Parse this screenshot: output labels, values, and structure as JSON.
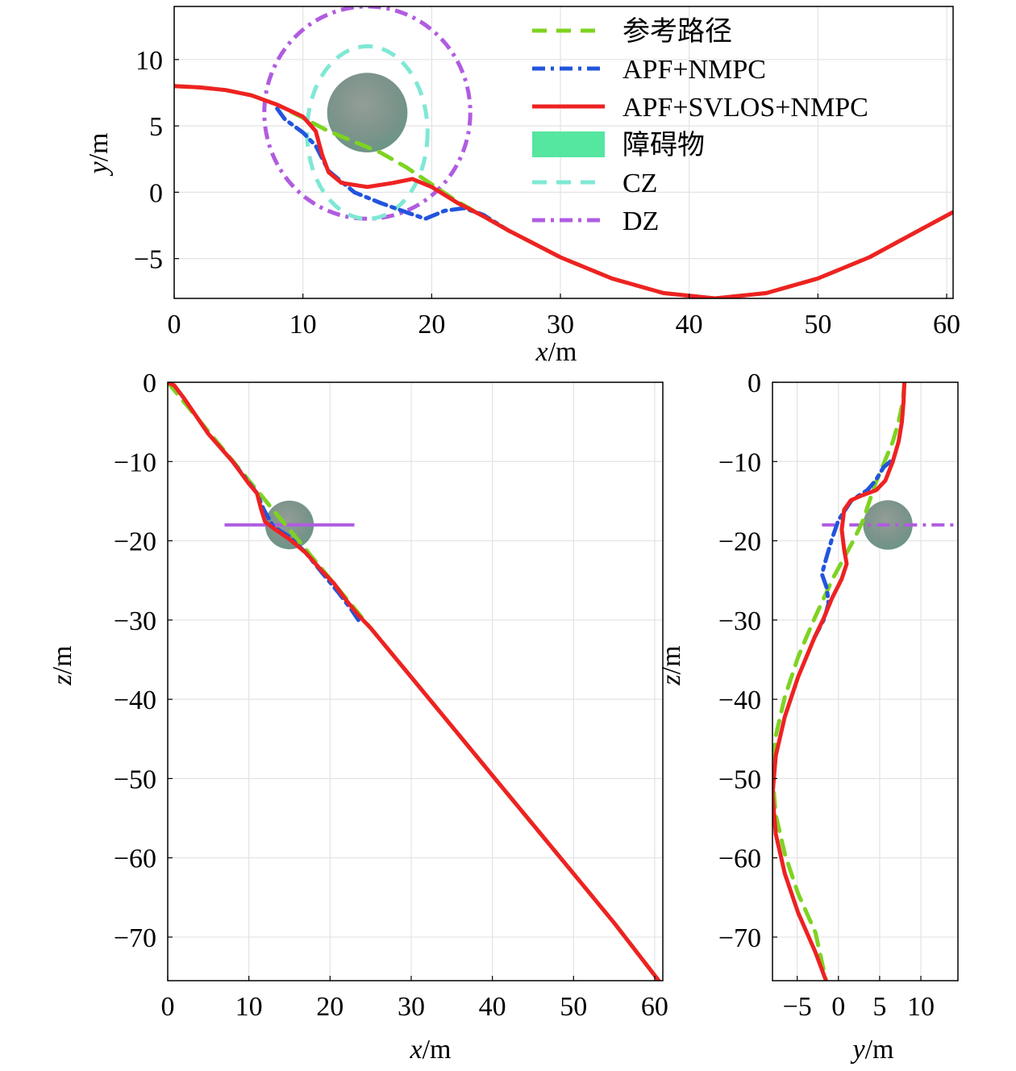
{
  "chart_data": [
    {
      "type": "line",
      "xlabel_var": "x",
      "xlabel_unit": "/m",
      "ylabel_var": "y",
      "ylabel_unit": "/m",
      "xlim": [
        0,
        60.5
      ],
      "ylim": [
        -8,
        14
      ],
      "xticks": [
        0,
        10,
        20,
        30,
        40,
        50,
        60
      ],
      "yticks": [
        -5,
        0,
        5,
        10
      ],
      "grid": true,
      "legend": {
        "placement": "top-right",
        "entries": [
          {
            "label": "参考路径",
            "color": "#7ed321",
            "style": "dashed"
          },
          {
            "label": "APF+NMPC",
            "color": "#2255dd",
            "style": "dashdot"
          },
          {
            "label": "APF+SVLOS+NMPC",
            "color": "#ee2222",
            "style": "solid"
          },
          {
            "label": "障碍物",
            "color": "#55e6a0",
            "style": "patch"
          },
          {
            "label": "CZ",
            "color": "#7fe8d4",
            "style": "dashed"
          },
          {
            "label": "DZ",
            "color": "#b05ce0",
            "style": "dashdot"
          }
        ]
      },
      "obstacle": {
        "center": [
          15,
          6
        ],
        "radius": 3
      },
      "cz": {
        "center": [
          15,
          4.5
        ],
        "radius": 6.5
      },
      "dz": {
        "center": [
          15,
          6
        ],
        "radius": 8
      },
      "series": [
        {
          "key": "ref",
          "color": "#7ed321",
          "style": "dashed",
          "x": [
            0,
            2,
            4,
            6,
            8,
            10,
            12,
            14,
            16,
            18,
            20,
            22,
            24,
            26,
            28,
            30,
            34,
            38,
            42,
            46,
            50,
            54,
            58,
            60.5
          ],
          "y": [
            8,
            7.9,
            7.7,
            7.3,
            6.6,
            5.6,
            4.6,
            3.8,
            3,
            1.9,
            0.6,
            -0.7,
            -1.8,
            -2.9,
            -3.9,
            -4.9,
            -6.5,
            -7.6,
            -8,
            -7.6,
            -6.5,
            -4.9,
            -2.8,
            -1.5
          ]
        },
        {
          "key": "apf_nmpc",
          "color": "#2255dd",
          "style": "dashdot",
          "x": [
            8,
            8.6,
            10,
            11,
            12,
            14,
            16,
            18,
            19.5,
            21,
            22.5,
            24,
            26
          ],
          "y": [
            6.3,
            5.5,
            4.5,
            3.5,
            1.6,
            0,
            -0.8,
            -1.5,
            -2,
            -1.4,
            -1.2,
            -1.7,
            -2.9
          ]
        },
        {
          "key": "apf_svlos_nmpc",
          "color": "#ee2222",
          "style": "solid",
          "x": [
            0,
            2,
            4,
            6,
            8,
            10,
            11,
            11.5,
            12,
            13,
            15,
            17,
            18.5,
            20,
            22,
            24,
            26,
            28,
            30,
            34,
            38,
            42,
            46,
            50,
            54,
            58,
            60.5
          ],
          "y": [
            8,
            7.9,
            7.7,
            7.3,
            6.6,
            5.7,
            4.6,
            2.8,
            1.5,
            0.7,
            0.4,
            0.7,
            1,
            0.4,
            -0.8,
            -1.8,
            -2.9,
            -3.9,
            -4.9,
            -6.5,
            -7.6,
            -8,
            -7.6,
            -6.5,
            -4.9,
            -2.8,
            -1.5
          ]
        }
      ]
    },
    {
      "type": "line",
      "xlabel_var": "x",
      "xlabel_unit": "/m",
      "ylabel_var": "z",
      "ylabel_unit": "/m",
      "xlim": [
        0,
        61
      ],
      "ylim": [
        -75.5,
        0
      ],
      "xticks": [
        0,
        10,
        20,
        30,
        40,
        50,
        60
      ],
      "yticks": [
        0,
        -10,
        -20,
        -30,
        -40,
        -50,
        -60,
        -70
      ],
      "grid": true,
      "obstacle": {
        "center": [
          15,
          -18
        ],
        "radius": 3
      },
      "dz_line": {
        "x": [
          7,
          23
        ],
        "z": -18
      },
      "series": [
        {
          "key": "ref",
          "color": "#7ed321",
          "style": "dashed",
          "x": [
            0,
            5,
            10,
            15,
            20,
            25,
            30,
            35,
            40,
            45,
            50,
            55,
            60.5
          ],
          "y": [
            0,
            -6.2,
            -12.4,
            -18.6,
            -24.8,
            -31,
            -37.2,
            -43.4,
            -49.6,
            -55.8,
            -62,
            -68.2,
            -75.5
          ]
        },
        {
          "key": "apf_nmpc",
          "color": "#2255dd",
          "style": "dashdot",
          "x": [
            8,
            9.5,
            11,
            11.8,
            13,
            15,
            17,
            19,
            21,
            22.5,
            23.5
          ],
          "y": [
            -10,
            -12,
            -14,
            -16,
            -18.2,
            -19.5,
            -21.5,
            -24,
            -26.5,
            -28.5,
            -30
          ]
        },
        {
          "key": "apf_svlos_nmpc",
          "color": "#ee2222",
          "style": "solid",
          "x": [
            0,
            0.8,
            2,
            5,
            8,
            10,
            11,
            11.5,
            12,
            13,
            15,
            17,
            19,
            20.5,
            22,
            23.5,
            25,
            30,
            35,
            40,
            45,
            50,
            55,
            60.5
          ],
          "y": [
            0,
            -0.4,
            -2,
            -6.5,
            -10,
            -12.8,
            -14,
            -16,
            -17.6,
            -18.4,
            -19.8,
            -21.5,
            -23.8,
            -25.4,
            -27.5,
            -29.4,
            -31,
            -37.2,
            -43.4,
            -49.6,
            -55.8,
            -62,
            -68.2,
            -75.5
          ]
        }
      ]
    },
    {
      "type": "line",
      "xlabel_var": "y",
      "xlabel_unit": "/m",
      "ylabel_var": "z",
      "ylabel_unit": "/m",
      "xlim": [
        -8,
        14.5
      ],
      "ylim": [
        -75.5,
        0
      ],
      "xticks": [
        -5,
        0,
        5,
        10
      ],
      "yticks": [
        0,
        -10,
        -20,
        -30,
        -40,
        -50,
        -60,
        -70
      ],
      "grid": true,
      "obstacle": {
        "center": [
          6,
          -18
        ],
        "radius": 3
      },
      "dz_line": {
        "x": [
          -2,
          14.5
        ],
        "z": -18
      },
      "series": [
        {
          "key": "ref",
          "color": "#7ed321",
          "style": "dashed",
          "x": [
            8,
            7.8,
            7.3,
            6.6,
            5.6,
            4.6,
            3.8,
            3,
            1.9,
            0.6,
            -0.7,
            -1.8,
            -2.9,
            -3.9,
            -4.9,
            -6.5,
            -7.6,
            -8,
            -7.6,
            -6.5,
            -4.9,
            -2.8,
            -1.5
          ],
          "y": [
            0,
            -2.5,
            -5,
            -7.5,
            -10,
            -12.5,
            -14.9,
            -17.4,
            -19.8,
            -22.3,
            -24.8,
            -27.3,
            -29.8,
            -32.2,
            -34.7,
            -39.7,
            -44.6,
            -49.6,
            -54.6,
            -59.5,
            -64.5,
            -69.4,
            -75.5
          ]
        },
        {
          "key": "apf_nmpc",
          "color": "#2255dd",
          "style": "dashdot",
          "x": [
            6.3,
            5.5,
            4.5,
            3.5,
            1.6,
            0,
            -0.8,
            -1.5,
            -2,
            -1.4,
            -1.2,
            -1.7,
            -2.9
          ],
          "y": [
            -10,
            -10.7,
            -12.4,
            -13.6,
            -14.9,
            -17.4,
            -19.8,
            -22.3,
            -24.2,
            -26,
            -27.9,
            -29.8,
            -32.2
          ]
        },
        {
          "key": "apf_svlos_nmpc",
          "color": "#ee2222",
          "style": "solid",
          "x": [
            8,
            7.9,
            7.7,
            7.3,
            6.6,
            5.7,
            4.6,
            2.8,
            1.5,
            0.7,
            0.4,
            0.7,
            1,
            0.4,
            -0.8,
            -1.8,
            -2.9,
            -3.9,
            -4.9,
            -6.5,
            -7.6,
            -8,
            -7.6,
            -6.5,
            -4.9,
            -2.8,
            -1.5
          ],
          "y": [
            0,
            -2.5,
            -5,
            -7.5,
            -10,
            -12.4,
            -13.6,
            -14.3,
            -14.9,
            -16.1,
            -18.6,
            -21.1,
            -22.9,
            -24.8,
            -27.3,
            -29.8,
            -32.2,
            -34.7,
            -37.2,
            -42.2,
            -47.1,
            -52.1,
            -57,
            -62,
            -66.9,
            -71.9,
            -75.5
          ]
        }
      ]
    }
  ]
}
